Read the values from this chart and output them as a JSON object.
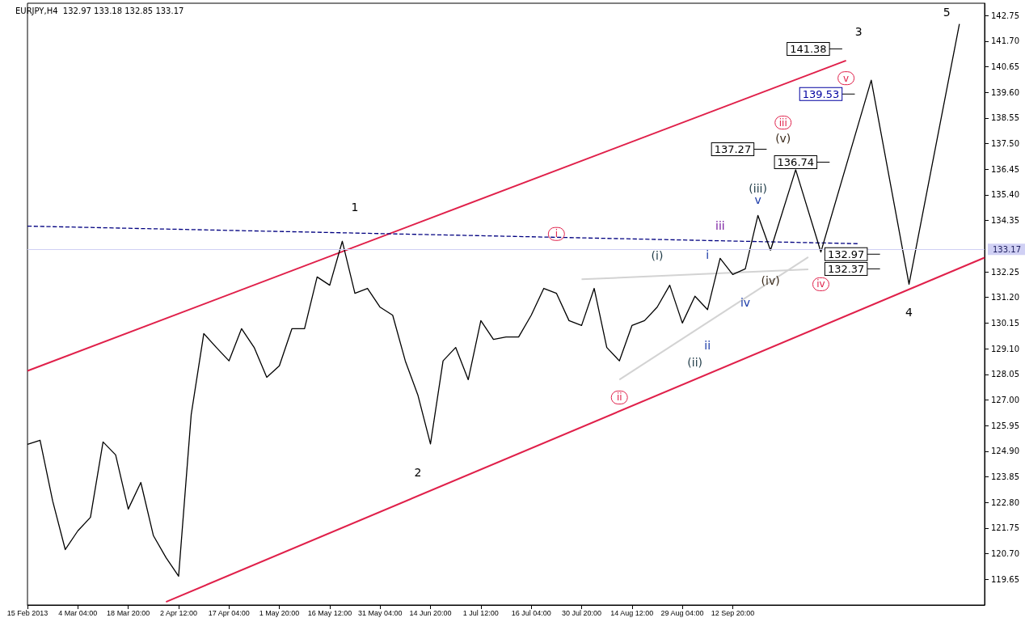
{
  "chart_data": {
    "type": "line",
    "title": "EURJPY,H4  132.97 133.18 132.85 133.17",
    "categories": [
      "15 Feb 2013",
      null,
      null,
      null,
      "4 Mar 04:00",
      null,
      null,
      null,
      "18 Mar 20:00",
      null,
      null,
      null,
      "2 Apr 12:00",
      null,
      null,
      null,
      "17 Apr 04:00",
      null,
      null,
      null,
      "1 May 20:00",
      null,
      null,
      null,
      "16 May 12:00",
      null,
      null,
      null,
      "31 May 04:00",
      null,
      null,
      null,
      "14 Jun 20:00",
      null,
      null,
      null,
      "1 Jul 12:00",
      null,
      null,
      null,
      "16 Jul 04:00",
      null,
      null,
      null,
      "30 Jul 20:00",
      null,
      null,
      null,
      "14 Aug 12:00",
      null,
      null,
      null,
      "29 Aug 04:00",
      null,
      null,
      null,
      "12 Sep 20:00",
      null,
      null,
      null,
      null,
      null,
      null,
      null,
      null,
      null,
      null,
      null,
      null,
      null,
      null,
      null,
      null,
      null,
      null,
      null,
      null
    ],
    "series": [
      {
        "color": "#e0204a",
        "values": [
          128.19,
          null,
          null,
          null,
          null,
          null,
          null,
          null,
          null,
          null,
          null,
          null,
          null,
          null,
          null,
          null,
          null,
          null,
          null,
          null,
          null,
          null,
          null,
          null,
          null,
          null,
          null,
          null,
          null,
          null,
          null,
          null,
          null,
          null,
          null,
          null,
          null,
          null,
          null,
          null,
          null,
          null,
          null,
          null,
          null,
          null,
          null,
          null,
          null,
          null,
          null,
          null,
          null,
          null,
          null,
          null,
          null,
          null,
          null,
          null,
          null,
          null,
          null,
          null,
          null,
          140.9,
          null,
          null,
          null,
          null,
          null,
          null,
          null,
          null,
          null,
          null,
          null
        ]
      },
      {
        "color": "#e0204a",
        "values": [
          null,
          null,
          null,
          null,
          null,
          null,
          null,
          null,
          null,
          null,
          null,
          118.73,
          null,
          null,
          null,
          null,
          null,
          null,
          null,
          null,
          null,
          null,
          null,
          null,
          null,
          null,
          null,
          null,
          null,
          null,
          null,
          null,
          null,
          null,
          null,
          null,
          null,
          null,
          null,
          null,
          null,
          null,
          null,
          null,
          null,
          null,
          null,
          null,
          null,
          null,
          null,
          null,
          null,
          null,
          null,
          null,
          null,
          null,
          null,
          null,
          null,
          null,
          null,
          null,
          null,
          null,
          null,
          null,
          null,
          null,
          null,
          null,
          null,
          null,
          null,
          null,
          132.83
        ]
      },
      {
        "color": "#d3d3d3",
        "values": [
          null,
          null,
          null,
          null,
          null,
          null,
          null,
          null,
          null,
          null,
          null,
          null,
          null,
          null,
          null,
          null,
          null,
          null,
          null,
          null,
          null,
          null,
          null,
          null,
          null,
          null,
          null,
          null,
          null,
          null,
          null,
          null,
          null,
          null,
          null,
          null,
          null,
          null,
          null,
          null,
          null,
          null,
          null,
          null,
          131.94,
          null,
          null,
          null,
          null,
          null,
          null,
          null,
          null,
          null,
          null,
          null,
          null,
          null,
          null,
          null,
          null,
          null,
          132.35,
          null,
          null,
          null,
          null,
          null,
          null,
          null,
          null,
          null,
          null,
          null,
          null,
          null,
          null
        ]
      },
      {
        "color": "#d3d3d3",
        "values": [
          null,
          null,
          null,
          null,
          null,
          null,
          null,
          null,
          null,
          null,
          null,
          null,
          null,
          null,
          null,
          null,
          null,
          null,
          null,
          null,
          null,
          null,
          null,
          null,
          null,
          null,
          null,
          null,
          null,
          null,
          null,
          null,
          null,
          null,
          null,
          null,
          null,
          null,
          null,
          null,
          null,
          null,
          null,
          null,
          null,
          null,
          null,
          127.83,
          null,
          null,
          null,
          null,
          null,
          null,
          null,
          null,
          null,
          null,
          null,
          null,
          null,
          null,
          132.85,
          null,
          null,
          null,
          null,
          null,
          null,
          null,
          null,
          null,
          null,
          null,
          null,
          null,
          null
        ]
      },
      {
        "color": "#000080",
        "line_style": "dashed",
        "values": [
          134.12,
          null,
          null,
          null,
          null,
          null,
          null,
          null,
          null,
          null,
          null,
          null,
          null,
          null,
          null,
          null,
          null,
          null,
          null,
          null,
          null,
          null,
          null,
          null,
          null,
          null,
          null,
          null,
          null,
          null,
          null,
          null,
          null,
          null,
          null,
          null,
          null,
          null,
          null,
          null,
          null,
          null,
          null,
          null,
          null,
          null,
          null,
          null,
          null,
          null,
          null,
          null,
          null,
          null,
          null,
          null,
          null,
          null,
          null,
          null,
          null,
          null,
          null,
          null,
          null,
          null,
          133.4,
          null,
          null,
          null,
          null,
          null,
          null,
          null,
          null,
          null,
          null
        ]
      },
      {
        "color": "#000000",
        "values": [
          125.18,
          125.35,
          122.86,
          120.87,
          121.64,
          122.19,
          125.28,
          124.75,
          122.53,
          123.62,
          121.44,
          120.54,
          119.78,
          126.4,
          129.72,
          129.15,
          128.6,
          129.92,
          129.15,
          127.93,
          128.4,
          129.92,
          129.92,
          132.04,
          131.7,
          133.5,
          131.37,
          131.57,
          130.8,
          130.47,
          128.6,
          127.2,
          125.2,
          128.6,
          129.15,
          127.83,
          130.25,
          129.48,
          129.58,
          129.58,
          130.47,
          131.57,
          131.37,
          130.25,
          130.05,
          131.57,
          129.15,
          128.6,
          130.05,
          130.25,
          130.8,
          131.7,
          130.15,
          131.25,
          130.7,
          132.8,
          132.14,
          132.37,
          134.56,
          133.13,
          null,
          null,
          null,
          null,
          null,
          null,
          null,
          null,
          null,
          null,
          null,
          null,
          null,
          null,
          null,
          null,
          null
        ]
      },
      {
        "color": "#000000",
        "values": [
          null,
          null,
          null,
          null,
          null,
          null,
          null,
          null,
          null,
          null,
          null,
          null,
          null,
          null,
          null,
          null,
          null,
          null,
          null,
          null,
          null,
          null,
          null,
          null,
          null,
          null,
          null,
          null,
          null,
          null,
          null,
          null,
          null,
          null,
          null,
          null,
          null,
          null,
          null,
          null,
          null,
          null,
          null,
          null,
          null,
          null,
          null,
          null,
          null,
          null,
          null,
          null,
          null,
          null,
          null,
          null,
          null,
          null,
          null,
          133.13,
          null,
          136.43,
          null,
          133.06,
          null,
          null,
          null,
          140.1,
          null,
          null,
          131.74,
          null,
          null,
          null,
          142.4,
          null,
          null
        ]
      }
    ],
    "ylim": [
      118.6,
      143.25
    ],
    "yticks": [
      119.65,
      {
        "value": 120.7,
        "label": "120.70"
      },
      121.75,
      {
        "value": 122.8,
        "label": "122.80"
      },
      123.85,
      {
        "value": 124.9,
        "label": "124.90"
      },
      125.95,
      {
        "value": 127,
        "label": "127.00"
      },
      128.05,
      {
        "value": 129.1,
        "label": "129.10"
      },
      130.15,
      {
        "value": 131.2,
        "label": "131.20"
      },
      132.25,
      134.35,
      {
        "value": 135.4,
        "label": "135.40"
      },
      136.45,
      {
        "value": 137.5,
        "label": "137.50"
      },
      138.55,
      {
        "value": 139.6,
        "label": "139.60"
      },
      140.65,
      {
        "value": 141.7,
        "label": "141.70"
      },
      142.75
    ],
    "ref_lines": [
      {
        "axis": "y",
        "value": 133.17,
        "label": "133.17",
        "color": "#d0d0f4"
      }
    ],
    "grid": false,
    "marker": "none",
    "line_style": "solid",
    "annotations": [
      "1",
      "2",
      "3",
      "4",
      "5",
      "i",
      "ii",
      "iii",
      "iv",
      "v",
      "(i)",
      "(ii)",
      "(iii)",
      "(iv)",
      "(v)",
      "i",
      "ii",
      "iii",
      "iv",
      "v",
      "141.38",
      "139.53",
      "137.27",
      "136.74",
      "132.97",
      "132.37"
    ]
  }
}
